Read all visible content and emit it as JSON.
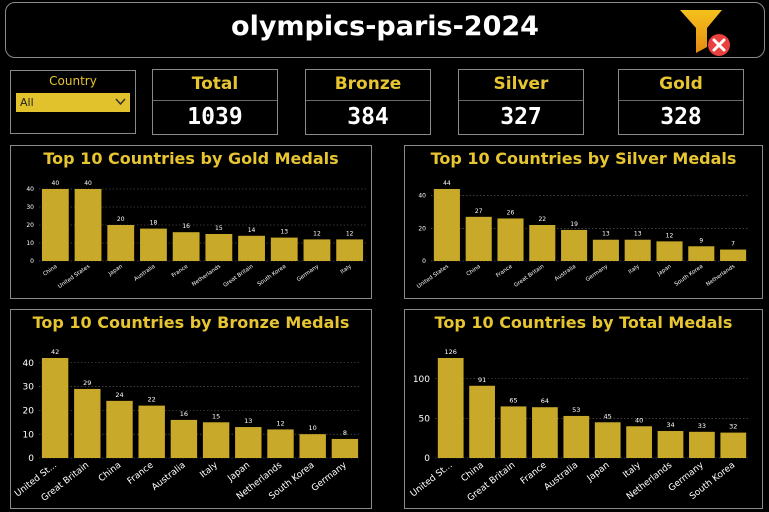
{
  "header": {
    "title": "olympics-paris-2024",
    "clear_filter_icon": "clear-filter-icon"
  },
  "colors": {
    "background": "#000000",
    "accent": "#e6c531",
    "bar": "#c9a92a",
    "clear": "#e9413e"
  },
  "slicer": {
    "label": "Country",
    "selected": "All"
  },
  "kpis": [
    {
      "label": "Total",
      "value": "1039"
    },
    {
      "label": "Bronze",
      "value": "384"
    },
    {
      "label": "Silver",
      "value": "327"
    },
    {
      "label": "Gold",
      "value": "328"
    }
  ],
  "chart_data": [
    {
      "type": "bar",
      "title": "Top 10 Countries by Gold Medals",
      "categories": [
        "China",
        "United States",
        "Japan",
        "Australia",
        "France",
        "Netherlands",
        "Great Britain",
        "South Korea",
        "Germany",
        "Italy"
      ],
      "values": [
        40,
        40,
        20,
        18,
        16,
        15,
        14,
        13,
        12,
        12
      ],
      "yticks": [
        0,
        10,
        20,
        30,
        40
      ],
      "ylim": [
        0,
        40
      ],
      "grid": true
    },
    {
      "type": "bar",
      "title": "Top 10 Countries by Silver Medals",
      "categories": [
        "United States",
        "China",
        "France",
        "Great Britain",
        "Australia",
        "Germany",
        "Italy",
        "Japan",
        "South Korea",
        "Netherlands"
      ],
      "values": [
        44,
        27,
        26,
        22,
        19,
        13,
        13,
        12,
        9,
        7
      ],
      "yticks": [
        0,
        20,
        40
      ],
      "ylim": [
        0,
        44
      ],
      "grid": true
    },
    {
      "type": "bar",
      "title": "Top 10 Countries by Bronze Medals",
      "categories": [
        "United St...",
        "Great Britain",
        "China",
        "France",
        "Australia",
        "Italy",
        "Japan",
        "Netherlands",
        "South Korea",
        "Germany"
      ],
      "values": [
        42,
        29,
        24,
        22,
        16,
        15,
        13,
        12,
        10,
        8
      ],
      "yticks": [
        0,
        10,
        20,
        30,
        40
      ],
      "ylim": [
        0,
        42
      ],
      "grid": true
    },
    {
      "type": "bar",
      "title": "Top 10 Countries by Total Medals",
      "categories": [
        "United St...",
        "China",
        "Great Britain",
        "France",
        "Australia",
        "Japan",
        "Italy",
        "Netherlands",
        "Germany",
        "South Korea"
      ],
      "values": [
        126,
        91,
        65,
        64,
        53,
        45,
        40,
        34,
        33,
        32
      ],
      "yticks": [
        0,
        50,
        100
      ],
      "ylim": [
        0,
        126
      ],
      "grid": true
    }
  ]
}
